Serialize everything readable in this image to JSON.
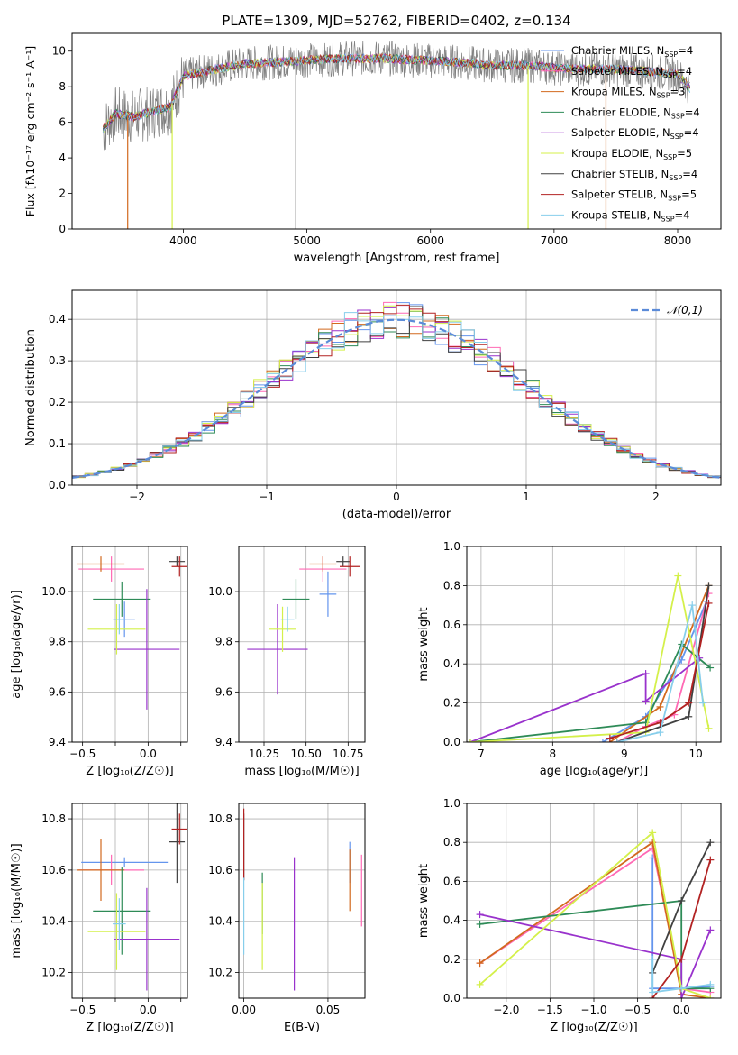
{
  "figure_title": "PLATE=1309, MJD=52762, FIBERID=0402, z=0.134",
  "series_styles": [
    {
      "name": "Chabrier MILES",
      "nssp": "4",
      "color": "#6495ed"
    },
    {
      "name": "Salpeter MILES",
      "nssp": "4",
      "color": "#ff69b4"
    },
    {
      "name": "Kroupa MILES",
      "nssp": "3",
      "color": "#d2691e"
    },
    {
      "name": "Chabrier ELODIE",
      "nssp": "4",
      "color": "#2e8b57"
    },
    {
      "name": "Salpeter ELODIE",
      "nssp": "4",
      "color": "#9932cc"
    },
    {
      "name": "Kroupa ELODIE",
      "nssp": "5",
      "color": "#d4f04a"
    },
    {
      "name": "Chabrier STELIB",
      "nssp": "4",
      "color": "#404040"
    },
    {
      "name": "Salpeter STELIB",
      "nssp": "5",
      "color": "#b22222"
    },
    {
      "name": "Kroupa STELIB",
      "nssp": "4",
      "color": "#87ceeb"
    }
  ],
  "chart_data": [
    {
      "id": "spectrum",
      "type": "line",
      "xlabel": "wavelength [Angstrom, rest frame]",
      "xlim": [
        3100,
        8350
      ],
      "ylim": [
        0,
        11
      ],
      "xticks": [
        4000,
        5000,
        6000,
        7000,
        8000
      ],
      "yticks": [
        0,
        2,
        4,
        6,
        8,
        10
      ],
      "observed_color": "#808080",
      "continuum": [
        [
          3350,
          5.6
        ],
        [
          3450,
          6.5
        ],
        [
          3600,
          6.3
        ],
        [
          3750,
          6.6
        ],
        [
          3900,
          6.9
        ],
        [
          4000,
          8.6
        ],
        [
          4200,
          8.9
        ],
        [
          4500,
          9.3
        ],
        [
          4800,
          9.4
        ],
        [
          5000,
          9.5
        ],
        [
          5300,
          9.6
        ],
        [
          5600,
          9.6
        ],
        [
          5900,
          9.5
        ],
        [
          6200,
          9.4
        ],
        [
          6500,
          9.2
        ],
        [
          6800,
          9.2
        ],
        [
          7100,
          9.0
        ],
        [
          7400,
          9.0
        ],
        [
          7700,
          8.9
        ],
        [
          8000,
          8.7
        ],
        [
          8100,
          7.9
        ]
      ],
      "dropouts": [
        [
          3550,
          "Kroupa MILES"
        ],
        [
          3910,
          "Kroupa ELODIE"
        ],
        [
          4910,
          "observed"
        ],
        [
          6790,
          "Kroupa ELODIE"
        ],
        [
          7420,
          "Kroupa MILES"
        ]
      ],
      "legend_placement": "upper right"
    },
    {
      "id": "residuals",
      "type": "histogram",
      "xlabel": "(data-model)/error",
      "ylabel": "Normed distribution",
      "xlim": [
        -2.5,
        2.5
      ],
      "ylim": [
        0,
        0.47
      ],
      "xticks": [
        -2,
        -1,
        0,
        1,
        2
      ],
      "yticks": [
        0.0,
        0.1,
        0.2,
        0.3,
        0.4
      ],
      "bin_width": 0.1,
      "reference": {
        "label": "𝒩(0,1)",
        "mean": 0,
        "sigma": 1,
        "color": "#5b8bd8"
      },
      "grid": true,
      "legend_placement": "upper right"
    },
    {
      "id": "age_vs_z",
      "type": "scatter_errorbars",
      "xlabel": "Z [log₁₀(Z/Z☉)]",
      "ylabel": "age  [log₁₀(age/yr)]",
      "xlim": [
        -0.58,
        0.3
      ],
      "ylim": [
        9.4,
        10.18
      ],
      "xticks": [
        -0.5,
        -0.25,
        0.0,
        0.25
      ],
      "xticklabels": [
        "−0.5",
        "",
        "0.0",
        ""
      ],
      "yticks": [
        9.4,
        9.6,
        9.8,
        10.0
      ],
      "points": [
        {
          "series": "Chabrier MILES",
          "x": -0.18,
          "y": 9.89,
          "xerr": 0.08,
          "yerr": 0.07
        },
        {
          "series": "Salpeter MILES",
          "x": -0.28,
          "y": 10.09,
          "xerr": 0.25,
          "yerr": 0.05
        },
        {
          "series": "Kroupa MILES",
          "x": -0.36,
          "y": 10.11,
          "xerr": 0.18,
          "yerr": 0.03
        },
        {
          "series": "Chabrier ELODIE",
          "x": -0.2,
          "y": 9.97,
          "xerr": 0.22,
          "yerr": 0.07
        },
        {
          "series": "Salpeter ELODIE",
          "x": -0.01,
          "y": 9.77,
          "xerr": 0.25,
          "yerr": 0.24
        },
        {
          "series": "Kroupa ELODIE",
          "x": -0.24,
          "y": 9.85,
          "xerr": 0.22,
          "yerr": 0.1
        },
        {
          "series": "Chabrier STELIB",
          "x": 0.22,
          "y": 10.12,
          "xerr": 0.06,
          "yerr": 0.02
        },
        {
          "series": "Salpeter STELIB",
          "x": 0.24,
          "y": 10.1,
          "xerr": 0.06,
          "yerr": 0.04
        },
        {
          "series": "Kroupa STELIB",
          "x": -0.22,
          "y": 9.89,
          "xerr": 0.05,
          "yerr": 0.06
        }
      ]
    },
    {
      "id": "age_vs_mass",
      "type": "scatter_errorbars",
      "xlabel": "mass [log₁₀(M/M☉)]",
      "ylabel": "",
      "xlim": [
        10.1,
        10.85
      ],
      "ylim": [
        9.4,
        10.18
      ],
      "xticks": [
        10.25,
        10.5,
        10.75
      ],
      "xticklabels": [
        "10.25",
        "10.50",
        "10.75"
      ],
      "yticks": [
        9.4,
        9.6,
        9.8,
        10.0
      ],
      "points": [
        {
          "series": "Chabrier MILES",
          "x": 10.63,
          "y": 9.99,
          "xerr": 0.05,
          "yerr": 0.09
        },
        {
          "series": "Salpeter MILES",
          "x": 10.6,
          "y": 10.09,
          "xerr": 0.14,
          "yerr": 0.05
        },
        {
          "series": "Kroupa MILES",
          "x": 10.6,
          "y": 10.11,
          "xerr": 0.08,
          "yerr": 0.03
        },
        {
          "series": "Chabrier ELODIE",
          "x": 10.44,
          "y": 9.97,
          "xerr": 0.08,
          "yerr": 0.08
        },
        {
          "series": "Salpeter ELODIE",
          "x": 10.33,
          "y": 9.77,
          "xerr": 0.18,
          "yerr": 0.18
        },
        {
          "series": "Kroupa ELODIE",
          "x": 10.36,
          "y": 9.85,
          "xerr": 0.08,
          "yerr": 0.09
        },
        {
          "series": "Chabrier STELIB",
          "x": 10.72,
          "y": 10.12,
          "xerr": 0.04,
          "yerr": 0.02
        },
        {
          "series": "Salpeter STELIB",
          "x": 10.76,
          "y": 10.1,
          "xerr": 0.06,
          "yerr": 0.04
        },
        {
          "series": "Kroupa STELIB",
          "x": 10.39,
          "y": 9.89,
          "xerr": 0.04,
          "yerr": 0.05
        }
      ]
    },
    {
      "id": "massweight_vs_age",
      "type": "line",
      "xlabel": "age  [log₁₀(age/yr)]",
      "ylabel": "mass weight",
      "xlim": [
        6.8,
        10.35
      ],
      "ylim": [
        0,
        1.0
      ],
      "xticks": [
        7,
        8,
        9,
        10
      ],
      "yticks": [
        0.0,
        0.2,
        0.4,
        0.6,
        0.8,
        1.0
      ],
      "grid": true,
      "series": [
        {
          "name": "Chabrier MILES",
          "x": [
            8.7,
            9.3,
            9.8,
            10.15
          ],
          "y": [
            0.0,
            0.13,
            0.42,
            0.72
          ]
        },
        {
          "name": "Salpeter MILES",
          "x": [
            8.9,
            9.3,
            9.7,
            10.18
          ],
          "y": [
            0.0,
            0.08,
            0.14,
            0.76
          ]
        },
        {
          "name": "Kroupa MILES",
          "x": [
            8.8,
            9.5,
            10.18
          ],
          "y": [
            0.0,
            0.18,
            0.8
          ]
        },
        {
          "name": "Chabrier ELODIE",
          "x": [
            6.85,
            9.3,
            9.8,
            10.2
          ],
          "y": [
            0.0,
            0.1,
            0.5,
            0.38
          ]
        },
        {
          "name": "Salpeter ELODIE",
          "x": [
            6.85,
            9.3,
            9.3,
            10.05
          ],
          "y": [
            0.0,
            0.35,
            0.21,
            0.43
          ]
        },
        {
          "name": "Kroupa ELODIE",
          "x": [
            6.85,
            9.3,
            9.75,
            10.18
          ],
          "y": [
            0.0,
            0.05,
            0.85,
            0.07
          ]
        },
        {
          "name": "Chabrier STELIB",
          "x": [
            8.9,
            9.9,
            10.18
          ],
          "y": [
            0.0,
            0.13,
            0.8
          ]
        },
        {
          "name": "Salpeter STELIB",
          "x": [
            8.8,
            9.5,
            9.9,
            10.18
          ],
          "y": [
            0.02,
            0.1,
            0.2,
            0.71
          ]
        },
        {
          "name": "Kroupa STELIB",
          "x": [
            8.9,
            9.5,
            9.95,
            10.1
          ],
          "y": [
            0.0,
            0.05,
            0.7,
            0.2
          ]
        }
      ]
    },
    {
      "id": "mass_vs_z",
      "type": "scatter_errorbars",
      "xlabel": "Z [log₁₀(Z/Z☉)]",
      "ylabel": "mass [log₁₀(M/M☉)]",
      "xlim": [
        -0.58,
        0.3
      ],
      "ylim": [
        10.1,
        10.86
      ],
      "xticks": [
        -0.5,
        -0.25,
        0.0,
        0.25
      ],
      "xticklabels": [
        "−0.5",
        "",
        "0.0",
        ""
      ],
      "yticks": [
        10.2,
        10.4,
        10.6,
        10.8
      ],
      "points": [
        {
          "series": "Chabrier MILES",
          "x": -0.18,
          "y": 10.63,
          "xerr": 0.33,
          "yerr": 0.02
        },
        {
          "series": "Salpeter MILES",
          "x": -0.28,
          "y": 10.6,
          "xerr": 0.25,
          "yerr": 0.06
        },
        {
          "series": "Kroupa MILES",
          "x": -0.36,
          "y": 10.6,
          "xerr": 0.18,
          "yerr": 0.12
        },
        {
          "series": "Chabrier ELODIE",
          "x": -0.2,
          "y": 10.44,
          "xerr": 0.22,
          "yerr": 0.17
        },
        {
          "series": "Salpeter ELODIE",
          "x": -0.01,
          "y": 10.33,
          "xerr": 0.25,
          "yerr": 0.2
        },
        {
          "series": "Kroupa ELODIE",
          "x": -0.24,
          "y": 10.36,
          "xerr": 0.22,
          "yerr": 0.15
        },
        {
          "series": "Chabrier STELIB",
          "x": 0.22,
          "y": 10.71,
          "xerr": 0.06,
          "yerr": 0.16
        },
        {
          "series": "Salpeter STELIB",
          "x": 0.24,
          "y": 10.76,
          "xerr": 0.06,
          "yerr": 0.06
        },
        {
          "series": "Kroupa STELIB",
          "x": -0.22,
          "y": 10.39,
          "xerr": 0.05,
          "yerr": 0.1
        }
      ]
    },
    {
      "id": "mass_vs_ebv",
      "type": "scatter_errorbars",
      "xlabel": "E(B-V)",
      "ylabel": "",
      "xlim": [
        -0.003,
        0.072
      ],
      "ylim": [
        10.1,
        10.86
      ],
      "xticks": [
        0.0,
        0.05
      ],
      "xticklabels": [
        "0.00",
        "0.05"
      ],
      "yticks": [
        10.2,
        10.4,
        10.6,
        10.8
      ],
      "points": [
        {
          "series": "Chabrier MILES",
          "x": 0.063,
          "y": 10.63,
          "xerr": 0,
          "yerr": 0.08
        },
        {
          "series": "Salpeter MILES",
          "x": 0.07,
          "y": 10.52,
          "xerr": 0,
          "yerr": 0.14
        },
        {
          "series": "Kroupa MILES",
          "x": 0.063,
          "y": 10.56,
          "xerr": 0,
          "yerr": 0.12
        },
        {
          "series": "Chabrier ELODIE",
          "x": 0.011,
          "y": 10.47,
          "xerr": 0,
          "yerr": 0.12
        },
        {
          "series": "Salpeter ELODIE",
          "x": 0.03,
          "y": 10.39,
          "xerr": 0,
          "yerr": 0.26
        },
        {
          "series": "Kroupa ELODIE",
          "x": 0.011,
          "y": 10.38,
          "xerr": 0,
          "yerr": 0.17
        },
        {
          "series": "Chabrier STELIB",
          "x": 0.0,
          "y": 10.69,
          "xerr": 0,
          "yerr": 0.13
        },
        {
          "series": "Salpeter STELIB",
          "x": 0.0,
          "y": 10.7,
          "xerr": 0,
          "yerr": 0.14
        },
        {
          "series": "Kroupa STELIB",
          "x": 0.0,
          "y": 10.42,
          "xerr": 0,
          "yerr": 0.15
        }
      ]
    },
    {
      "id": "massweight_vs_z",
      "type": "line",
      "xlabel": "Z [log₁₀(Z/Z☉)]",
      "ylabel": "mass weight",
      "xlim": [
        -2.45,
        0.45
      ],
      "ylim": [
        0,
        1.0
      ],
      "xticks": [
        -2.0,
        -1.5,
        -1.0,
        -0.5,
        0.0
      ],
      "xticklabels": [
        "−2.0",
        "−1.5",
        "−1.0",
        "−0.5",
        "0.0"
      ],
      "yticks": [
        0.0,
        0.2,
        0.4,
        0.6,
        0.8,
        1.0
      ],
      "grid": true,
      "series": [
        {
          "name": "Chabrier MILES",
          "x": [
            -0.33,
            -0.33,
            0.0,
            0.33
          ],
          "y": [
            0.72,
            0.05,
            0.05,
            0.06
          ]
        },
        {
          "name": "Salpeter MILES",
          "x": [
            -2.3,
            -0.33,
            0.0,
            0.33
          ],
          "y": [
            0.18,
            0.77,
            0.05,
            0.03
          ]
        },
        {
          "name": "Kroupa MILES",
          "x": [
            -2.3,
            -0.33,
            0.0,
            0.33
          ],
          "y": [
            0.18,
            0.8,
            0.02,
            0.0
          ]
        },
        {
          "name": "Chabrier ELODIE",
          "x": [
            -2.3,
            0.0,
            0.0,
            0.33
          ],
          "y": [
            0.38,
            0.5,
            0.05,
            0.05
          ]
        },
        {
          "name": "Salpeter ELODIE",
          "x": [
            -2.3,
            0.0,
            0.0,
            0.33
          ],
          "y": [
            0.43,
            0.2,
            0.0,
            0.35
          ]
        },
        {
          "name": "Kroupa ELODIE",
          "x": [
            -2.3,
            -0.33,
            0.0,
            0.33
          ],
          "y": [
            0.07,
            0.85,
            0.05,
            0.0
          ]
        },
        {
          "name": "Chabrier STELIB",
          "x": [
            -0.33,
            0.0,
            0.33
          ],
          "y": [
            0.13,
            0.5,
            0.8
          ]
        },
        {
          "name": "Salpeter STELIB",
          "x": [
            -0.33,
            0.0,
            0.33
          ],
          "y": [
            0.0,
            0.2,
            0.71
          ]
        },
        {
          "name": "Kroupa STELIB",
          "x": [
            -0.33,
            -0.33,
            0.0,
            0.33
          ],
          "y": [
            0.2,
            0.03,
            0.05,
            0.07
          ]
        }
      ]
    }
  ]
}
